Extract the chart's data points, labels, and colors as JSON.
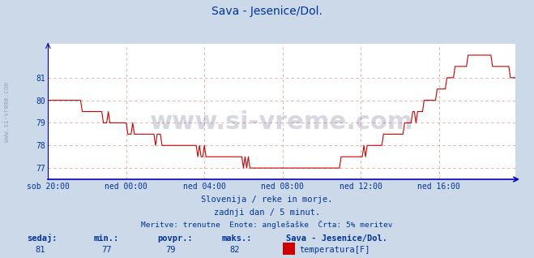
{
  "title": "Sava - Jesenice/Dol.",
  "title_color": "#003399",
  "bg_color": "#ccd9e8",
  "plot_bg_color": "#ffffff",
  "grid_color_h": "#e8a0a0",
  "grid_color_v": "#e8a0a0",
  "line_color": "#cc0000",
  "axis_color": "#0000bb",
  "tick_color": "#003399",
  "watermark_side": "www.si-vreme.com",
  "watermark_center": "www.si-vreme.com",
  "title_fontsize": 10,
  "subtitle1": "Slovenija / reke in morje.",
  "subtitle2": "zadnji dan / 5 minut.",
  "subtitle3": "Meritve: trenutne  Enote: anglešaške  Črta: 5% meritev",
  "footer_labels": [
    "sedaj:",
    "min.:",
    "povpr.:",
    "maks.:"
  ],
  "footer_values": [
    "81",
    "77",
    "79",
    "82"
  ],
  "footer_series": "Sava - Jesenice/Dol.",
  "footer_legend": "temperatura[F]",
  "footer_legend_color": "#cc0000",
  "x_tick_labels": [
    "sob 20:00",
    "ned 00:00",
    "ned 04:00",
    "ned 08:00",
    "ned 12:00",
    "ned 16:00"
  ],
  "x_tick_positions": [
    0,
    48,
    96,
    144,
    192,
    240
  ],
  "ylim": [
    76.5,
    82.5
  ],
  "yticks": [
    77,
    78,
    79,
    80,
    81
  ],
  "n_points": 288
}
